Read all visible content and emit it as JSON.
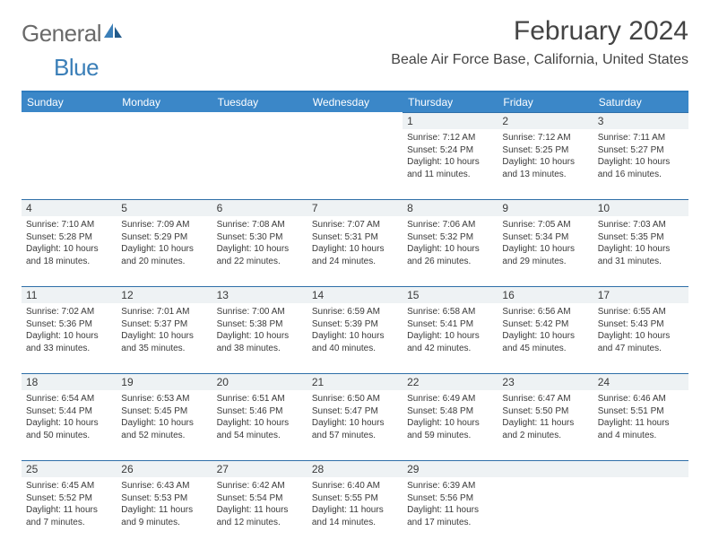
{
  "colors": {
    "header_bg": "#3b87c8",
    "header_border": "#2f7cbf",
    "daynum_bg": "#eef2f4",
    "daynum_border": "#2f6fa8",
    "text": "#3a3a3a",
    "logo_gray": "#6a6a6a",
    "logo_blue": "#3b7fb8"
  },
  "logo": {
    "part1": "General",
    "part2": "Blue"
  },
  "title": "February 2024",
  "location": "Beale Air Force Base, California, United States",
  "day_names": [
    "Sunday",
    "Monday",
    "Tuesday",
    "Wednesday",
    "Thursday",
    "Friday",
    "Saturday"
  ],
  "weeks": [
    [
      null,
      null,
      null,
      null,
      {
        "n": "1",
        "sr": "Sunrise: 7:12 AM",
        "ss": "Sunset: 5:24 PM",
        "d1": "Daylight: 10 hours",
        "d2": "and 11 minutes."
      },
      {
        "n": "2",
        "sr": "Sunrise: 7:12 AM",
        "ss": "Sunset: 5:25 PM",
        "d1": "Daylight: 10 hours",
        "d2": "and 13 minutes."
      },
      {
        "n": "3",
        "sr": "Sunrise: 7:11 AM",
        "ss": "Sunset: 5:27 PM",
        "d1": "Daylight: 10 hours",
        "d2": "and 16 minutes."
      }
    ],
    [
      {
        "n": "4",
        "sr": "Sunrise: 7:10 AM",
        "ss": "Sunset: 5:28 PM",
        "d1": "Daylight: 10 hours",
        "d2": "and 18 minutes."
      },
      {
        "n": "5",
        "sr": "Sunrise: 7:09 AM",
        "ss": "Sunset: 5:29 PM",
        "d1": "Daylight: 10 hours",
        "d2": "and 20 minutes."
      },
      {
        "n": "6",
        "sr": "Sunrise: 7:08 AM",
        "ss": "Sunset: 5:30 PM",
        "d1": "Daylight: 10 hours",
        "d2": "and 22 minutes."
      },
      {
        "n": "7",
        "sr": "Sunrise: 7:07 AM",
        "ss": "Sunset: 5:31 PM",
        "d1": "Daylight: 10 hours",
        "d2": "and 24 minutes."
      },
      {
        "n": "8",
        "sr": "Sunrise: 7:06 AM",
        "ss": "Sunset: 5:32 PM",
        "d1": "Daylight: 10 hours",
        "d2": "and 26 minutes."
      },
      {
        "n": "9",
        "sr": "Sunrise: 7:05 AM",
        "ss": "Sunset: 5:34 PM",
        "d1": "Daylight: 10 hours",
        "d2": "and 29 minutes."
      },
      {
        "n": "10",
        "sr": "Sunrise: 7:03 AM",
        "ss": "Sunset: 5:35 PM",
        "d1": "Daylight: 10 hours",
        "d2": "and 31 minutes."
      }
    ],
    [
      {
        "n": "11",
        "sr": "Sunrise: 7:02 AM",
        "ss": "Sunset: 5:36 PM",
        "d1": "Daylight: 10 hours",
        "d2": "and 33 minutes."
      },
      {
        "n": "12",
        "sr": "Sunrise: 7:01 AM",
        "ss": "Sunset: 5:37 PM",
        "d1": "Daylight: 10 hours",
        "d2": "and 35 minutes."
      },
      {
        "n": "13",
        "sr": "Sunrise: 7:00 AM",
        "ss": "Sunset: 5:38 PM",
        "d1": "Daylight: 10 hours",
        "d2": "and 38 minutes."
      },
      {
        "n": "14",
        "sr": "Sunrise: 6:59 AM",
        "ss": "Sunset: 5:39 PM",
        "d1": "Daylight: 10 hours",
        "d2": "and 40 minutes."
      },
      {
        "n": "15",
        "sr": "Sunrise: 6:58 AM",
        "ss": "Sunset: 5:41 PM",
        "d1": "Daylight: 10 hours",
        "d2": "and 42 minutes."
      },
      {
        "n": "16",
        "sr": "Sunrise: 6:56 AM",
        "ss": "Sunset: 5:42 PM",
        "d1": "Daylight: 10 hours",
        "d2": "and 45 minutes."
      },
      {
        "n": "17",
        "sr": "Sunrise: 6:55 AM",
        "ss": "Sunset: 5:43 PM",
        "d1": "Daylight: 10 hours",
        "d2": "and 47 minutes."
      }
    ],
    [
      {
        "n": "18",
        "sr": "Sunrise: 6:54 AM",
        "ss": "Sunset: 5:44 PM",
        "d1": "Daylight: 10 hours",
        "d2": "and 50 minutes."
      },
      {
        "n": "19",
        "sr": "Sunrise: 6:53 AM",
        "ss": "Sunset: 5:45 PM",
        "d1": "Daylight: 10 hours",
        "d2": "and 52 minutes."
      },
      {
        "n": "20",
        "sr": "Sunrise: 6:51 AM",
        "ss": "Sunset: 5:46 PM",
        "d1": "Daylight: 10 hours",
        "d2": "and 54 minutes."
      },
      {
        "n": "21",
        "sr": "Sunrise: 6:50 AM",
        "ss": "Sunset: 5:47 PM",
        "d1": "Daylight: 10 hours",
        "d2": "and 57 minutes."
      },
      {
        "n": "22",
        "sr": "Sunrise: 6:49 AM",
        "ss": "Sunset: 5:48 PM",
        "d1": "Daylight: 10 hours",
        "d2": "and 59 minutes."
      },
      {
        "n": "23",
        "sr": "Sunrise: 6:47 AM",
        "ss": "Sunset: 5:50 PM",
        "d1": "Daylight: 11 hours",
        "d2": "and 2 minutes."
      },
      {
        "n": "24",
        "sr": "Sunrise: 6:46 AM",
        "ss": "Sunset: 5:51 PM",
        "d1": "Daylight: 11 hours",
        "d2": "and 4 minutes."
      }
    ],
    [
      {
        "n": "25",
        "sr": "Sunrise: 6:45 AM",
        "ss": "Sunset: 5:52 PM",
        "d1": "Daylight: 11 hours",
        "d2": "and 7 minutes."
      },
      {
        "n": "26",
        "sr": "Sunrise: 6:43 AM",
        "ss": "Sunset: 5:53 PM",
        "d1": "Daylight: 11 hours",
        "d2": "and 9 minutes."
      },
      {
        "n": "27",
        "sr": "Sunrise: 6:42 AM",
        "ss": "Sunset: 5:54 PM",
        "d1": "Daylight: 11 hours",
        "d2": "and 12 minutes."
      },
      {
        "n": "28",
        "sr": "Sunrise: 6:40 AM",
        "ss": "Sunset: 5:55 PM",
        "d1": "Daylight: 11 hours",
        "d2": "and 14 minutes."
      },
      {
        "n": "29",
        "sr": "Sunrise: 6:39 AM",
        "ss": "Sunset: 5:56 PM",
        "d1": "Daylight: 11 hours",
        "d2": "and 17 minutes."
      },
      null,
      null
    ]
  ]
}
